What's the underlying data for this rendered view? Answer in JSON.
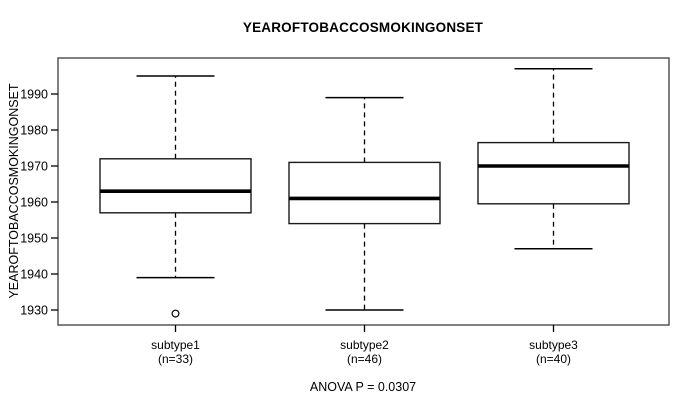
{
  "title": "YEAROFTOBACCOSMOKINGONSET",
  "y_axis": {
    "label": "YEAROFTOBACCOSMOKINGONSET",
    "tick_labels": [
      "1930",
      "1940",
      "1950",
      "1960",
      "1970",
      "1980",
      "1990"
    ]
  },
  "footer": {
    "anova_text": "ANOVA P = 0.0307"
  },
  "colors": {
    "box_stroke": "#000000",
    "frame_stroke": "#4a4a4a",
    "box_fill": "#ffffff",
    "background": "#ffffff"
  },
  "chart_data": {
    "type": "boxplot",
    "title": "YEAROFTOBACCOSMOKINGONSET",
    "xlabel": "",
    "ylabel": "YEAROFTOBACCOSMOKINGONSET",
    "ylim": [
      1926,
      2000
    ],
    "yticks": [
      1930,
      1940,
      1950,
      1960,
      1970,
      1980,
      1990
    ],
    "grid": false,
    "legend": null,
    "annotation": "ANOVA P = 0.0307",
    "groups": [
      {
        "label": "subtype1",
        "sublabel": "(n=33)",
        "n": 33,
        "whisker_low": 1939,
        "q1": 1957,
        "median": 1963,
        "q3": 1972,
        "whisker_high": 1995,
        "outliers": [
          1929
        ]
      },
      {
        "label": "subtype2",
        "sublabel": "(n=46)",
        "n": 46,
        "whisker_low": 1930,
        "q1": 1954,
        "median": 1961,
        "q3": 1971,
        "whisker_high": 1989,
        "outliers": []
      },
      {
        "label": "subtype3",
        "sublabel": "(n=40)",
        "n": 40,
        "whisker_low": 1947,
        "q1": 1959.5,
        "median": 1970,
        "q3": 1976.5,
        "whisker_high": 1997,
        "outliers": []
      }
    ]
  }
}
